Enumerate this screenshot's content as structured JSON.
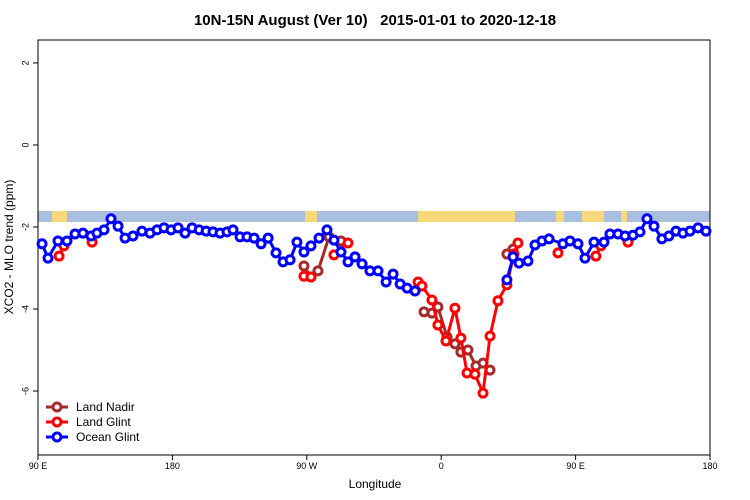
{
  "chart_data": {
    "type": "line",
    "title": "10N-15N August (Ver 10)   2015-01-01 to 2020-12-18",
    "x_label": "Longitude",
    "y_label": "XCO2 - MLO trend (ppm)",
    "xlim": [
      90,
      540
    ],
    "ylim": [
      -7.56,
      2.56
    ],
    "xticks": [
      {
        "value": 90,
        "label": "90 E"
      },
      180,
      {
        "value": 270,
        "label": "90 W"
      },
      {
        "value": 360,
        "label": "0"
      },
      {
        "value": 450,
        "label": "90 E"
      },
      {
        "value": 540,
        "label": "180"
      }
    ],
    "yticks": [
      2,
      0,
      -2,
      -4,
      -6
    ],
    "legend": "bottom-left",
    "series": [
      {
        "name": "Land Nadir",
        "color": "#a52a2a",
        "x": [
          268.1,
          272.8,
          277.5,
          284.9,
          292.9,
          320,
          348.5,
          353.8,
          357.8,
          363.9,
          369.2,
          373.2,
          377.9,
          383.3,
          388.0,
          392.7,
          398,
          404.0,
          408.1
        ],
        "values": [
          -2.95,
          -3.22,
          -3.07,
          -2.24,
          -2.34,
          null,
          -4.07,
          -4.1,
          -3.95,
          -4.68,
          -4.85,
          -5.05,
          -5.0,
          -5.39,
          -5.32,
          -5.49,
          null,
          -2.66,
          -2.54
        ]
      },
      {
        "name": "Land Glint",
        "color": "#ff0000",
        "x": [
          104.1,
          107.4,
          116,
          126.2,
          200,
          268.1,
          272.8,
          280,
          288.2,
          297.6,
          320,
          344.5,
          347.1,
          353.8,
          357.8,
          363.2,
          369.2,
          373.2,
          377.3,
          382.6,
          388.0,
          392.7,
          398.0,
          404.0,
          408.7,
          411.4,
          425,
          438.2,
          450,
          463.6,
          467.0,
          475,
          485.1
        ],
        "values": [
          -2.71,
          -2.46,
          null,
          -2.37,
          null,
          -3.2,
          -3.22,
          null,
          -2.68,
          -2.39,
          null,
          -3.34,
          -3.44,
          -3.78,
          -4.39,
          -4.78,
          -3.98,
          -4.71,
          -5.56,
          -5.59,
          -6.05,
          -4.66,
          -3.8,
          -3.41,
          -2.66,
          -2.39,
          null,
          -2.63,
          null,
          -2.71,
          -2.46,
          null,
          -2.37
        ]
      },
      {
        "name": "Ocean Glint",
        "color": "#0000ff",
        "x": [
          92.7,
          96.7,
          103.4,
          109.4,
          114.8,
          120.1,
          125.5,
          129.5,
          134.2,
          138.9,
          143.6,
          148.3,
          153.6,
          159.6,
          165.0,
          169.7,
          174.4,
          179.1,
          183.8,
          188.5,
          193.2,
          197.9,
          202.6,
          207.2,
          211.9,
          216.6,
          220.6,
          225.3,
          230.0,
          234.7,
          239.4,
          244.1,
          249.4,
          254.1,
          258.8,
          263.4,
          268.1,
          272.8,
          278.2,
          283.5,
          288.2,
          292.9,
          297.6,
          302.3,
          307.0,
          312.3,
          317.7,
          323.1,
          327.8,
          332.5,
          337.2,
          342.5,
          373,
          404.0,
          408.1,
          412.1,
          418.1,
          422.8,
          427.5,
          432.2,
          441.5,
          446.2,
          451.6,
          456.3,
          462.3,
          469.0,
          473.0,
          478.4,
          483.1,
          488.4,
          493.1,
          497.8,
          502.5,
          507.8,
          512.5,
          517.2,
          521.9,
          526.6,
          532.0,
          537.3
        ],
        "values": [
          -2.41,
          -2.76,
          -2.34,
          -2.34,
          -2.17,
          -2.15,
          -2.22,
          -2.15,
          -2.07,
          -1.8,
          -1.98,
          -2.27,
          -2.22,
          -2.1,
          -2.15,
          -2.07,
          -2.02,
          -2.07,
          -2.02,
          -2.15,
          -2.02,
          -2.07,
          -2.1,
          -2.12,
          -2.15,
          -2.12,
          -2.07,
          -2.24,
          -2.24,
          -2.27,
          -2.41,
          -2.27,
          -2.63,
          -2.85,
          -2.8,
          -2.37,
          -2.61,
          -2.46,
          -2.27,
          -2.07,
          -2.32,
          -2.61,
          -2.85,
          -2.73,
          -2.9,
          -3.07,
          -3.07,
          -3.34,
          -3.15,
          -3.39,
          -3.49,
          -3.56,
          null,
          -3.29,
          -2.73,
          -2.88,
          -2.83,
          -2.44,
          -2.34,
          -2.29,
          -2.41,
          -2.34,
          -2.41,
          -2.76,
          -2.37,
          -2.37,
          -2.17,
          -2.17,
          -2.22,
          -2.2,
          -2.12,
          -1.8,
          -1.98,
          -2.29,
          -2.22,
          -2.1,
          -2.15,
          -2.1,
          -2.02,
          -2.1
        ]
      }
    ]
  }
}
